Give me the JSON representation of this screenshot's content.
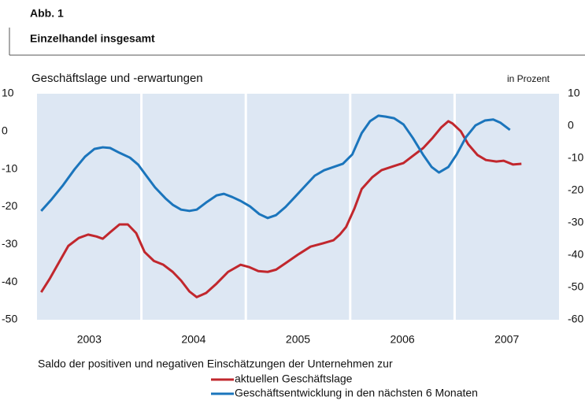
{
  "chart_data": {
    "type": "line",
    "figure_label": "Abb. 1",
    "title": "Einzelhandel insgesamt",
    "subtitle": "Geschäftslage und -erwartungen",
    "unit_label": "in Prozent",
    "note": "Saldo der positiven und negativen Einschätzungen der Unternehmen zur",
    "xlim": [
      2003,
      2008
    ],
    "xticks": [
      {
        "value": 2003.5,
        "label": "2003"
      },
      {
        "value": 2004.5,
        "label": "2004"
      },
      {
        "value": 2005.5,
        "label": "2005"
      },
      {
        "value": 2006.5,
        "label": "2006"
      },
      {
        "value": 2007.5,
        "label": "2007"
      }
    ],
    "ylim": [
      -50,
      10
    ],
    "yticks": [
      10,
      0,
      -10,
      -20,
      -30,
      -40,
      -50
    ],
    "y2lim": [
      -60,
      10
    ],
    "y2ticks": [
      10,
      0,
      -10,
      -20,
      -30,
      -40,
      -50,
      -60
    ],
    "background": "#dde7f3",
    "series": [
      {
        "name": "aktuellen Geschäftslage",
        "color": "#c1272d",
        "x": [
          2003.04,
          2003.12,
          2003.21,
          2003.3,
          2003.4,
          2003.49,
          2003.57,
          2003.63,
          2003.7,
          2003.79,
          2003.87,
          2003.95,
          2004.03,
          2004.12,
          2004.21,
          2004.3,
          2004.38,
          2004.46,
          2004.53,
          2004.62,
          2004.72,
          2004.83,
          2004.95,
          2005.03,
          2005.12,
          2005.21,
          2005.29,
          2005.38,
          2005.5,
          2005.62,
          2005.74,
          2005.84,
          2005.9,
          2005.96,
          2006.04,
          2006.11,
          2006.21,
          2006.3,
          2006.42,
          2006.51,
          2006.6,
          2006.7,
          2006.79,
          2006.87,
          2006.94,
          2006.98,
          2007.06,
          2007.13,
          2007.22,
          2007.3,
          2007.4,
          2007.47,
          2007.56,
          2007.64
        ],
        "values": [
          -42.7,
          -39.2,
          -34.8,
          -30.4,
          -28.3,
          -27.4,
          -27.9,
          -28.5,
          -26.8,
          -24.7,
          -24.7,
          -27,
          -32,
          -34.4,
          -35.4,
          -37.3,
          -39.6,
          -42.5,
          -44,
          -42.9,
          -40.4,
          -37.3,
          -35.4,
          -36,
          -37.1,
          -37.3,
          -36.7,
          -35,
          -32.7,
          -30.6,
          -29.7,
          -28.9,
          -27.4,
          -25.4,
          -20.5,
          -15.3,
          -12.2,
          -10.3,
          -9.2,
          -8.4,
          -6.5,
          -4.4,
          -1.7,
          1.0,
          2.7,
          2.1,
          0,
          -3.4,
          -6.3,
          -7.6,
          -8,
          -7.8,
          -8.8,
          -8.6
        ]
      },
      {
        "name": "Geschäftsentwicklung in den nächsten 6 Monaten",
        "color": "#1b75bc",
        "axis": "y2",
        "x": [
          2003.04,
          2003.14,
          2003.25,
          2003.36,
          2003.46,
          2003.55,
          2003.63,
          2003.7,
          2003.79,
          2003.89,
          2003.97,
          2004.04,
          2004.13,
          2004.23,
          2004.3,
          2004.38,
          2004.46,
          2004.53,
          2004.62,
          2004.72,
          2004.79,
          2004.87,
          2004.95,
          2005.04,
          2005.13,
          2005.21,
          2005.29,
          2005.38,
          2005.47,
          2005.57,
          2005.66,
          2005.75,
          2005.84,
          2005.93,
          2006.02,
          2006.11,
          2006.19,
          2006.27,
          2006.34,
          2006.42,
          2006.51,
          2006.6,
          2006.7,
          2006.78,
          2006.85,
          2006.94,
          2007.02,
          2007.11,
          2007.2,
          2007.29,
          2007.37,
          2007.44,
          2007.53
        ],
        "values": [
          -26.3,
          -22.7,
          -18.3,
          -13.4,
          -9.5,
          -7.1,
          -6.6,
          -6.8,
          -8.3,
          -9.8,
          -12,
          -15.1,
          -19,
          -22.4,
          -24.4,
          -25.9,
          -26.3,
          -25.9,
          -23.7,
          -21.5,
          -21,
          -22,
          -23.2,
          -24.9,
          -27.3,
          -28.5,
          -27.6,
          -25.1,
          -22,
          -18.5,
          -15.4,
          -13.7,
          -12.7,
          -11.7,
          -8.8,
          -2.2,
          1.5,
          3.2,
          2.9,
          2.4,
          0.5,
          -3.7,
          -9,
          -12.7,
          -14.4,
          -12.7,
          -8.8,
          -3.4,
          0.2,
          1.7,
          2,
          1,
          -1.2
        ]
      }
    ]
  }
}
